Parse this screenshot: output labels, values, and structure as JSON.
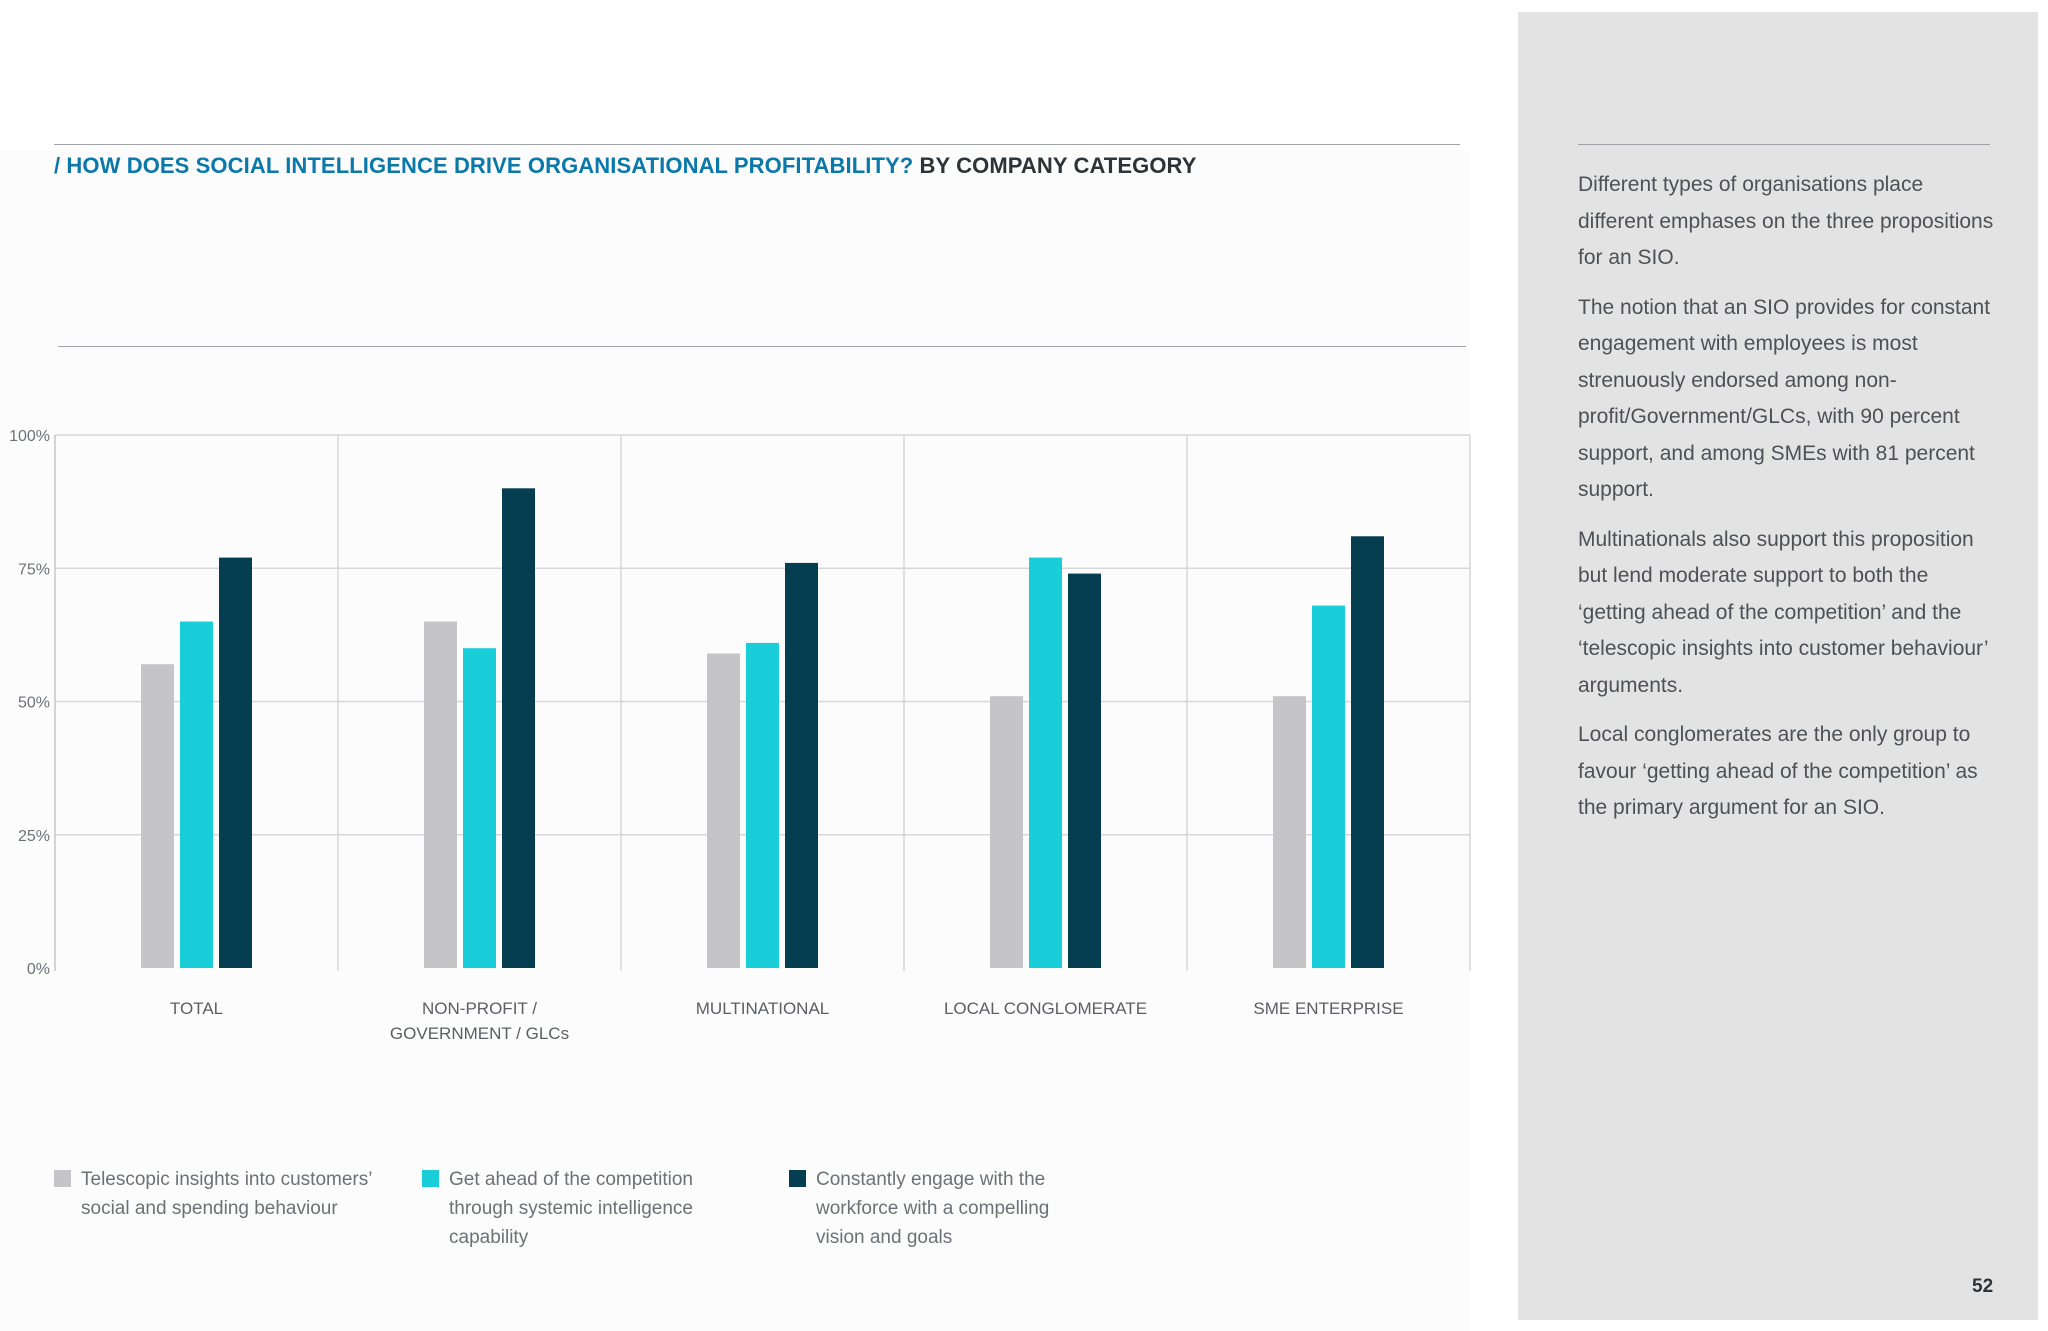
{
  "heading": {
    "question": "/ HOW DOES SOCIAL INTELLIGENCE DRIVE ORGANISATIONAL PROFITABILITY?",
    "category": "BY COMPANY CATEGORY"
  },
  "chart_data": {
    "type": "bar",
    "title": "/ HOW DOES SOCIAL INTELLIGENCE DRIVE ORGANISATIONAL PROFITABILITY? BY COMPANY CATEGORY",
    "categories": [
      "TOTAL",
      "NON-PROFIT /\nGOVERNMENT / GLCs",
      "MULTINATIONAL",
      "LOCAL CONGLOMERATE",
      "SME ENTERPRISE"
    ],
    "series": [
      {
        "name": "Telescopic insights into customers’ social and spending behaviour",
        "color": "#c5c5c8",
        "values": [
          57,
          65,
          59,
          51,
          51
        ]
      },
      {
        "name": "Get ahead of the competition through systemic intelligence capability",
        "color": "#19cdd9",
        "values": [
          65,
          60,
          61,
          77,
          68
        ]
      },
      {
        "name": "Constantly engage with the workforce with a compelling vision and goals",
        "color": "#043e50",
        "values": [
          77,
          90,
          76,
          74,
          81
        ]
      }
    ],
    "y_ticks": [
      "0%",
      "25%",
      "50%",
      "75%",
      "100%"
    ],
    "ylim": [
      0,
      100
    ],
    "grid": true,
    "legend_position": "bottom-left"
  },
  "legend": [
    {
      "text": "Telescopic insights into customers’\nsocial and spending behaviour",
      "color": "#c5c5c8"
    },
    {
      "text": "Get ahead of the competition\nthrough systemic intelligence\ncapability",
      "color": "#19cdd9"
    },
    {
      "text": "Constantly engage with the\nworkforce with a compelling\nvision and goals",
      "color": "#043e50"
    }
  ],
  "sidebar": {
    "paragraphs": [
      "Different types of organisations place different emphases on the three propositions for an SIO.",
      "The notion that an SIO provides for constant engagement with employees is most strenuously endorsed among non-profit/Government/GLCs, with 90 percent support, and among SMEs with 81 percent support.",
      "Multinationals also support this proposition but lend moderate support to both the ‘getting ahead of the competition’ and the ‘telescopic insights into customer behaviour’ arguments.",
      "Local conglomerates are the only group to favour ‘getting ahead of the competition’ as the primary argument for an SIO."
    ]
  },
  "page_number": "52"
}
